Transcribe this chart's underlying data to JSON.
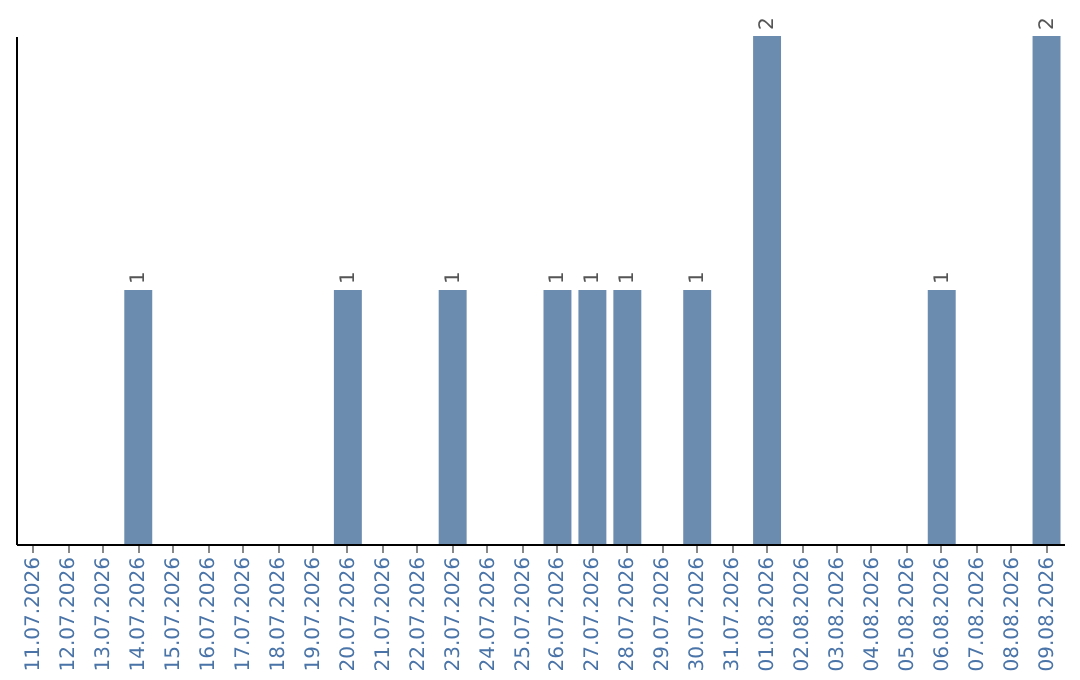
{
  "chart_data": {
    "type": "bar",
    "categories": [
      "11.07.2026",
      "12.07.2026",
      "13.07.2026",
      "14.07.2026",
      "15.07.2026",
      "16.07.2026",
      "17.07.2026",
      "18.07.2026",
      "19.07.2026",
      "20.07.2026",
      "21.07.2026",
      "22.07.2026",
      "23.07.2026",
      "24.07.2026",
      "25.07.2026",
      "26.07.2026",
      "27.07.2026",
      "28.07.2026",
      "29.07.2026",
      "30.07.2026",
      "31.07.2026",
      "01.08.2026",
      "02.08.2026",
      "03.08.2026",
      "04.08.2026",
      "05.08.2026",
      "06.08.2026",
      "07.08.2026",
      "08.08.2026",
      "09.08.2026"
    ],
    "values": [
      0,
      0,
      0,
      1,
      0,
      0,
      0,
      0,
      0,
      1,
      0,
      0,
      1,
      0,
      0,
      1,
      1,
      1,
      0,
      1,
      0,
      2,
      0,
      0,
      0,
      0,
      1,
      0,
      0,
      2
    ],
    "value_labels": [
      null,
      null,
      null,
      "1",
      null,
      null,
      null,
      null,
      null,
      "1",
      null,
      null,
      "1",
      null,
      null,
      "1",
      "1",
      "1",
      null,
      "1",
      null,
      "2",
      null,
      null,
      null,
      null,
      "1",
      null,
      null,
      "2"
    ],
    "color": "#6b8cae",
    "tick_labels": "x",
    "grid": false
  }
}
